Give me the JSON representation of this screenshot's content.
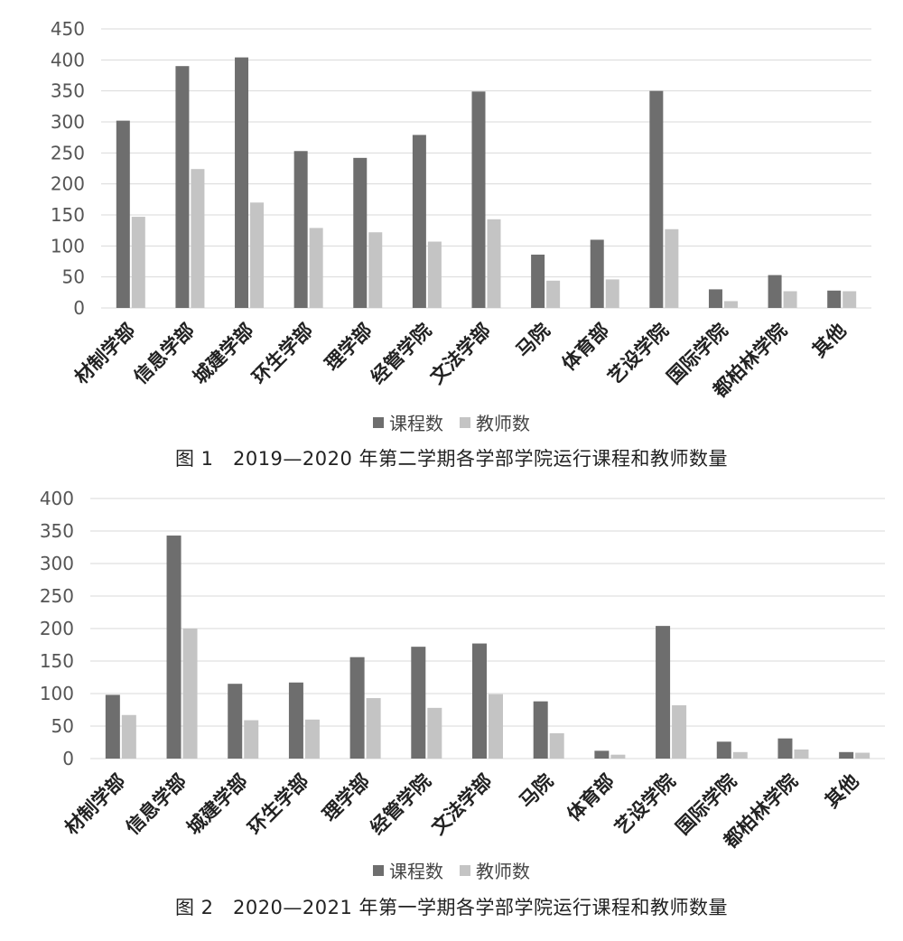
{
  "colors": {
    "series1": "#6e6e6e",
    "series2": "#c4c4c4",
    "grid": "#d9d9d9",
    "axis_text": "#555555"
  },
  "figure1": {
    "caption": "图 1　2019—2020 年第二学期各学部学院运行课程和教师数量"
  },
  "figure2": {
    "caption": "图 2　2020—2021 年第一学期各学部学院运行课程和教师数量"
  },
  "chart_data": [
    {
      "type": "bar",
      "categories": [
        "材制学部",
        "信息学部",
        "城建学部",
        "环生学部",
        "理学部",
        "经管学院",
        "文法学部",
        "马院",
        "体育部",
        "艺设学院",
        "国际学院",
        "都柏林学院",
        "其他"
      ],
      "series": [
        {
          "name": "课程数",
          "values": [
            302,
            390,
            404,
            253,
            242,
            279,
            349,
            86,
            110,
            350,
            30,
            53,
            28
          ]
        },
        {
          "name": "教师数",
          "values": [
            147,
            224,
            170,
            129,
            122,
            107,
            143,
            44,
            46,
            127,
            11,
            27,
            27
          ]
        }
      ],
      "ylim": [
        0,
        450
      ],
      "yticks": [
        0,
        50,
        100,
        150,
        200,
        250,
        300,
        350,
        400,
        450
      ],
      "grid": true,
      "legend": "bottom"
    },
    {
      "type": "bar",
      "categories": [
        "材制学部",
        "信息学部",
        "城建学部",
        "环生学部",
        "理学部",
        "经管学院",
        "文法学部",
        "马院",
        "体育部",
        "艺设学院",
        "国际学院",
        "都柏林学院",
        "其他"
      ],
      "series": [
        {
          "name": "课程数",
          "values": [
            98,
            343,
            115,
            117,
            156,
            172,
            177,
            88,
            12,
            204,
            26,
            31,
            10
          ]
        },
        {
          "name": "教师数",
          "values": [
            67,
            200,
            59,
            60,
            93,
            78,
            99,
            39,
            6,
            82,
            10,
            14,
            9
          ]
        }
      ],
      "ylim": [
        0,
        400
      ],
      "yticks": [
        0,
        50,
        100,
        150,
        200,
        250,
        300,
        350,
        400
      ],
      "grid": true,
      "legend": "bottom"
    }
  ]
}
